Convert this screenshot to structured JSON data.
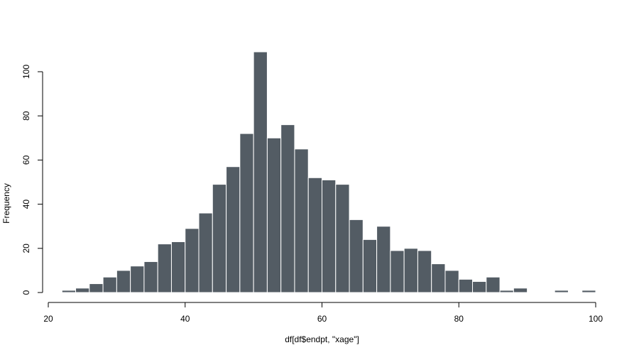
{
  "chart_data": {
    "type": "bar",
    "title": "",
    "xlabel": "df[df$endpt, \"xage\"]",
    "ylabel": "Frequency",
    "xlim": [
      20,
      100
    ],
    "ylim": [
      0,
      100
    ],
    "x_ticks": [
      20,
      40,
      60,
      80,
      100
    ],
    "y_ticks": [
      0,
      20,
      40,
      60,
      80,
      100
    ],
    "bin_width": 2,
    "bins": [
      {
        "x0": 22,
        "x1": 24,
        "count": 1
      },
      {
        "x0": 24,
        "x1": 26,
        "count": 2
      },
      {
        "x0": 26,
        "x1": 28,
        "count": 4
      },
      {
        "x0": 28,
        "x1": 30,
        "count": 7
      },
      {
        "x0": 30,
        "x1": 32,
        "count": 10
      },
      {
        "x0": 32,
        "x1": 34,
        "count": 12
      },
      {
        "x0": 34,
        "x1": 36,
        "count": 14
      },
      {
        "x0": 36,
        "x1": 38,
        "count": 22
      },
      {
        "x0": 38,
        "x1": 40,
        "count": 23
      },
      {
        "x0": 40,
        "x1": 42,
        "count": 29
      },
      {
        "x0": 42,
        "x1": 44,
        "count": 36
      },
      {
        "x0": 44,
        "x1": 46,
        "count": 49
      },
      {
        "x0": 46,
        "x1": 48,
        "count": 57
      },
      {
        "x0": 48,
        "x1": 50,
        "count": 72
      },
      {
        "x0": 50,
        "x1": 52,
        "count": 109
      },
      {
        "x0": 52,
        "x1": 54,
        "count": 70
      },
      {
        "x0": 54,
        "x1": 56,
        "count": 76
      },
      {
        "x0": 56,
        "x1": 58,
        "count": 65
      },
      {
        "x0": 58,
        "x1": 60,
        "count": 52
      },
      {
        "x0": 60,
        "x1": 62,
        "count": 51
      },
      {
        "x0": 62,
        "x1": 64,
        "count": 49
      },
      {
        "x0": 64,
        "x1": 66,
        "count": 33
      },
      {
        "x0": 66,
        "x1": 68,
        "count": 24
      },
      {
        "x0": 68,
        "x1": 70,
        "count": 30
      },
      {
        "x0": 70,
        "x1": 72,
        "count": 19
      },
      {
        "x0": 72,
        "x1": 74,
        "count": 20
      },
      {
        "x0": 74,
        "x1": 76,
        "count": 19
      },
      {
        "x0": 76,
        "x1": 78,
        "count": 13
      },
      {
        "x0": 78,
        "x1": 80,
        "count": 10
      },
      {
        "x0": 80,
        "x1": 82,
        "count": 6
      },
      {
        "x0": 82,
        "x1": 84,
        "count": 5
      },
      {
        "x0": 84,
        "x1": 86,
        "count": 7
      },
      {
        "x0": 86,
        "x1": 88,
        "count": 1
      },
      {
        "x0": 88,
        "x1": 90,
        "count": 2
      },
      {
        "x0": 94,
        "x1": 96,
        "count": 1
      },
      {
        "x0": 98,
        "x1": 100,
        "count": 1
      }
    ],
    "bar_color": "#535c64",
    "bar_border_color": "#ffffff",
    "grid": false,
    "legend": "none"
  }
}
